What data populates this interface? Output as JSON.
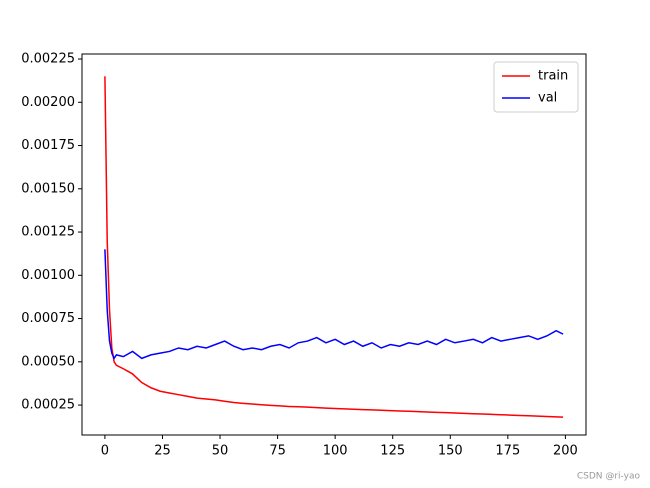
{
  "chart_data": {
    "type": "line",
    "x": [
      0,
      1,
      2,
      3,
      4,
      5,
      8,
      12,
      16,
      20,
      24,
      28,
      32,
      36,
      40,
      44,
      48,
      52,
      56,
      60,
      64,
      68,
      72,
      76,
      80,
      84,
      88,
      92,
      96,
      100,
      104,
      108,
      112,
      116,
      120,
      124,
      128,
      132,
      136,
      140,
      144,
      148,
      152,
      156,
      160,
      164,
      168,
      172,
      176,
      180,
      184,
      188,
      192,
      196,
      199
    ],
    "series": [
      {
        "name": "train",
        "color": "#ff0000",
        "values": [
          0.00215,
          0.0012,
          0.0008,
          0.00058,
          0.0005,
          0.00048,
          0.00046,
          0.00043,
          0.00038,
          0.00035,
          0.00033,
          0.00032,
          0.00031,
          0.0003,
          0.00029,
          0.000285,
          0.00028,
          0.000272,
          0.000265,
          0.00026,
          0.000256,
          0.000252,
          0.000248,
          0.000245,
          0.000242,
          0.00024,
          0.000238,
          0.000235,
          0.000232,
          0.00023,
          0.000228,
          0.000226,
          0.000224,
          0.000222,
          0.00022,
          0.000218,
          0.000216,
          0.000214,
          0.000212,
          0.00021,
          0.000208,
          0.000206,
          0.000204,
          0.000202,
          0.0002,
          0.000198,
          0.000196,
          0.000194,
          0.000192,
          0.00019,
          0.000188,
          0.000186,
          0.000184,
          0.000182,
          0.00018
        ]
      },
      {
        "name": "val",
        "color": "#0000ff",
        "values": [
          0.00115,
          0.0008,
          0.00062,
          0.00055,
          0.00052,
          0.00054,
          0.00053,
          0.00056,
          0.00052,
          0.00054,
          0.00055,
          0.00056,
          0.00058,
          0.00057,
          0.00059,
          0.00058,
          0.0006,
          0.00062,
          0.00059,
          0.00057,
          0.00058,
          0.00057,
          0.00059,
          0.0006,
          0.00058,
          0.00061,
          0.00062,
          0.00064,
          0.00061,
          0.00063,
          0.0006,
          0.00062,
          0.00059,
          0.00061,
          0.00058,
          0.0006,
          0.00059,
          0.00061,
          0.0006,
          0.00062,
          0.0006,
          0.00063,
          0.00061,
          0.00062,
          0.00063,
          0.00061,
          0.00064,
          0.00062,
          0.00063,
          0.00064,
          0.00065,
          0.00063,
          0.00065,
          0.00068,
          0.00066
        ]
      }
    ],
    "xlim": [
      -9.95,
      208.95
    ],
    "xticks": [
      0,
      25,
      50,
      75,
      100,
      125,
      150,
      175,
      200
    ],
    "ylim": [
      7.7e-05,
      0.002279
    ],
    "yticks": [
      0.00025,
      {
        "value": 0.0005,
        "label": "0.00050"
      },
      0.00075,
      {
        "value": 0.001,
        "label": "0.00100"
      },
      0.00125,
      {
        "value": 0.0015,
        "label": "0.00150"
      },
      0.00175,
      {
        "value": 0.002,
        "label": "0.00200"
      },
      0.00225
    ],
    "legend": "upper right",
    "watermark": "CSDN @ri-yao"
  }
}
